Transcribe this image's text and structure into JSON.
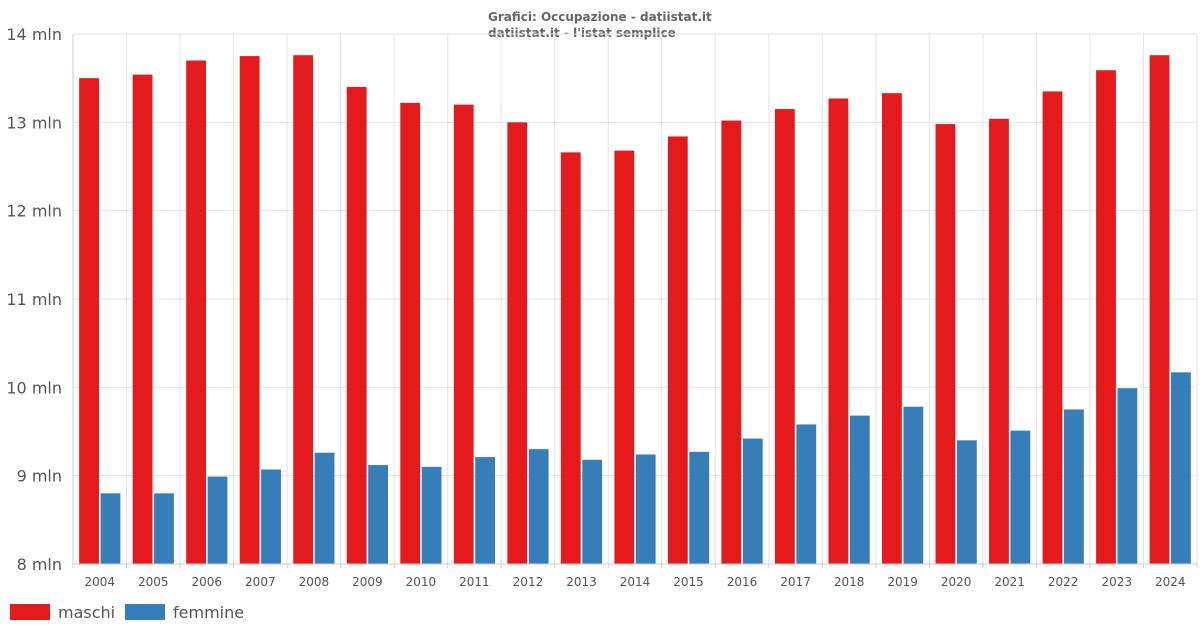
{
  "chart_data": {
    "type": "bar",
    "title": "Grafici: Occupazione - datiistat.it",
    "subtitle": "datiistat.it - l'istat semplice",
    "categories": [
      "2004",
      "2005",
      "2006",
      "2007",
      "2008",
      "2009",
      "2010",
      "2011",
      "2012",
      "2013",
      "2014",
      "2015",
      "2016",
      "2017",
      "2018",
      "2019",
      "2020",
      "2021",
      "2022",
      "2023",
      "2024"
    ],
    "series": [
      {
        "name": "maschi",
        "color": "#e41a1c",
        "values": [
          13.5,
          13.54,
          13.7,
          13.75,
          13.76,
          13.4,
          13.22,
          13.2,
          13.0,
          12.66,
          12.68,
          12.84,
          13.02,
          13.15,
          13.27,
          13.33,
          12.98,
          13.04,
          13.35,
          13.59,
          13.76
        ]
      },
      {
        "name": "femmine",
        "color": "#377eb8",
        "values": [
          8.8,
          8.8,
          8.99,
          9.07,
          9.26,
          9.12,
          9.1,
          9.21,
          9.3,
          9.18,
          9.24,
          9.27,
          9.42,
          9.58,
          9.68,
          9.78,
          9.4,
          9.51,
          9.75,
          9.99,
          10.17
        ]
      }
    ],
    "ylim": [
      8,
      14
    ],
    "yticks": [
      8,
      9,
      10,
      11,
      12,
      13,
      14
    ],
    "ytick_labels": [
      "8 mln",
      "9 mln",
      "10 mln",
      "11 mln",
      "12 mln",
      "13 mln",
      "14 mln"
    ],
    "xlabel": "",
    "ylabel": "",
    "grid": true,
    "legend_position": "bottom-left"
  }
}
